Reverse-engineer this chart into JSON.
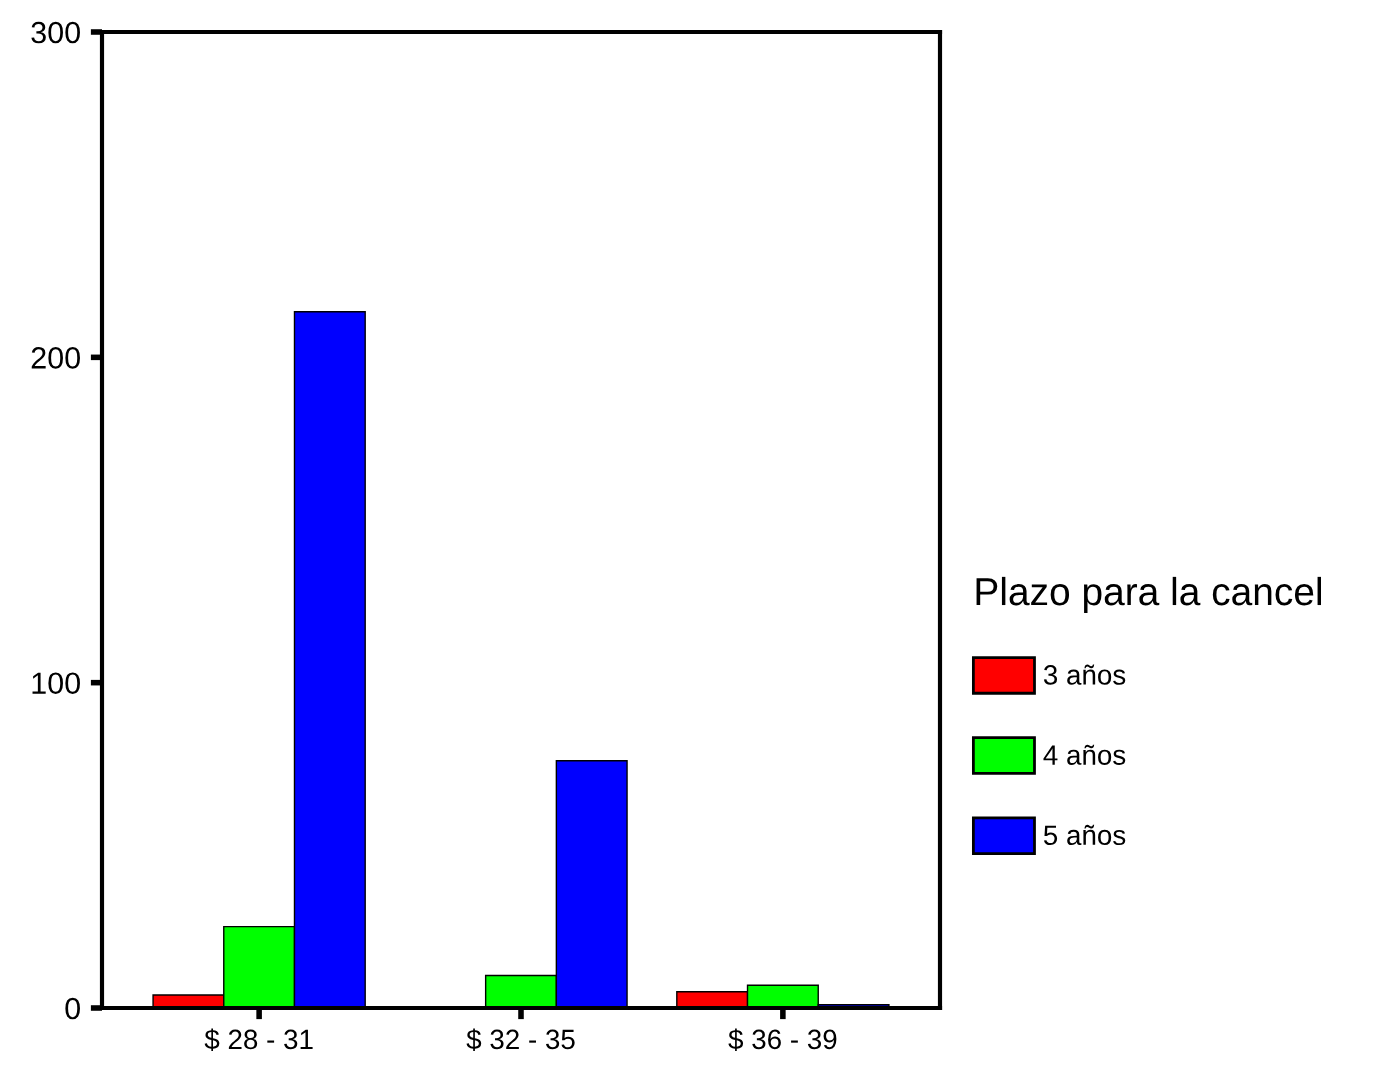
{
  "chart_data": {
    "type": "bar",
    "categories": [
      "$ 28 - 31",
      "$ 32 - 35",
      "$ 36 - 39"
    ],
    "series": [
      {
        "name": "3 años",
        "color": "#ff0000",
        "values": [
          4,
          null,
          5
        ]
      },
      {
        "name": "4 años",
        "color": "#00ff00",
        "values": [
          25,
          10,
          7
        ]
      },
      {
        "name": "5 años",
        "color": "#0000ff",
        "values": [
          214,
          76,
          1
        ]
      }
    ],
    "legend_title": "Plazo para la cancel",
    "legend": "right",
    "ylim": [
      0,
      300
    ],
    "yticks": [
      0,
      100,
      200,
      300
    ],
    "grid": false
  }
}
